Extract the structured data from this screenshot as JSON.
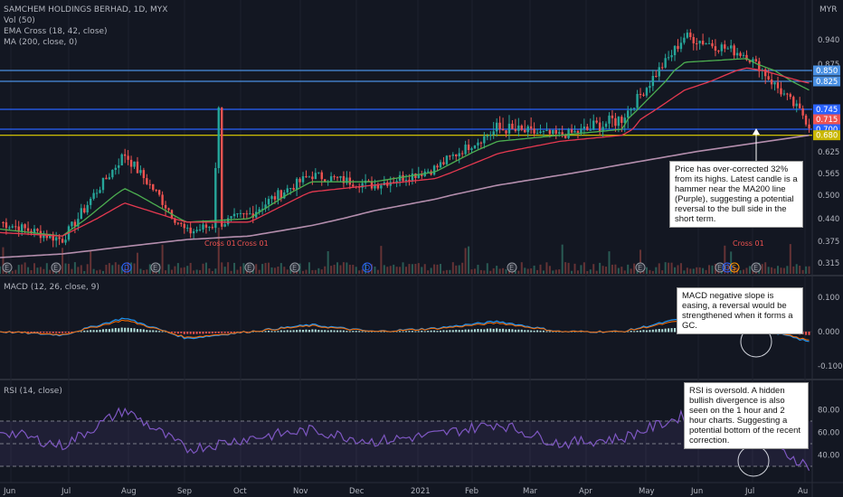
{
  "header": {
    "symbol_line": "SAMCHEM HOLDINGS BERHAD, 1D, MYX",
    "indicators": [
      "Vol (50)",
      "EMA Cross (18, 42, close)",
      "MA (200, close, 0)"
    ],
    "currency": "MYR"
  },
  "price_axis": {
    "ticks": [
      "0.940",
      "0.875",
      "0.850",
      "0.825",
      "0.745",
      "0.715",
      "0.700",
      "0.625",
      "0.565",
      "0.500",
      "0.440",
      "0.375",
      "0.315"
    ]
  },
  "price_tags": [
    {
      "text": "0.850",
      "color": "#4a90e2"
    },
    {
      "text": "0.825",
      "color": "#4a90e2"
    },
    {
      "text": "0.745",
      "color": "#2962ff"
    },
    {
      "text": "0.715",
      "color": "#ef5350"
    },
    {
      "text": "0.700",
      "color": "#2962ff"
    },
    {
      "text": "0.680",
      "color": "#c9b700"
    }
  ],
  "horizontal_levels": [
    {
      "value": 0.85,
      "color": "#4a90e2"
    },
    {
      "value": 0.825,
      "color": "#4a90e2"
    },
    {
      "value": 0.745,
      "color": "#2962ff"
    },
    {
      "value": 0.7,
      "color": "#2962ff"
    },
    {
      "value": 0.68,
      "color": "#e5d300"
    }
  ],
  "time_axis": [
    "Jun",
    "Jul",
    "Aug",
    "Sep",
    "Oct",
    "Nov",
    "Dec",
    "2021",
    "Feb",
    "Mar",
    "Apr",
    "May",
    "Jun",
    "Jul",
    "Au"
  ],
  "chart_markers": [
    "Cross 01",
    "Cross 01",
    "Cross 01"
  ],
  "event_badges": [
    "E",
    "E",
    "D",
    "E",
    "E",
    "E",
    "D",
    "E",
    "E",
    "E",
    "D",
    "S",
    "E"
  ],
  "macd": {
    "title": "MACD (12, 26, close, 9)",
    "ticks": [
      "0.100",
      "0.000",
      "-0.100"
    ]
  },
  "rsi": {
    "title": "RSI (14, close)",
    "ticks": [
      "80.00",
      "60.00",
      "40.00"
    ]
  },
  "annotations": {
    "price": "Price has over-corrected 32% from its highs. Latest candle is a hammer near the MA200 line (Purple), suggesting a potential reversal to the bull side in the short term.",
    "macd": "MACD negative slope is easing, a reversal would be strengthened when it forms a GC.",
    "rsi": "RSI is oversold. A hidden bullish divergence is also seen on the 1 hour and 2 hour charts. Suggesting a potential bottom of the recent correction."
  },
  "chart_data": {
    "type": "line",
    "title": "SAMCHEM HOLDINGS BERHAD, 1D, MYX",
    "x": [
      "Jun",
      "Jul",
      "Aug",
      "Sep",
      "Oct",
      "Nov",
      "Dec",
      "2021",
      "Feb",
      "Mar",
      "Apr",
      "May",
      "Jun",
      "Jul"
    ],
    "series": [
      {
        "name": "Close",
        "values": [
          0.43,
          0.38,
          0.62,
          0.4,
          0.45,
          0.56,
          0.53,
          0.58,
          0.7,
          0.68,
          0.72,
          0.95,
          0.9,
          0.71
        ]
      },
      {
        "name": "EMA 18",
        "values": [
          0.41,
          0.39,
          0.52,
          0.43,
          0.44,
          0.54,
          0.54,
          0.57,
          0.66,
          0.68,
          0.7,
          0.88,
          0.89,
          0.8
        ]
      },
      {
        "name": "EMA 42",
        "values": [
          0.4,
          0.39,
          0.48,
          0.43,
          0.43,
          0.51,
          0.53,
          0.55,
          0.62,
          0.66,
          0.68,
          0.8,
          0.86,
          0.82
        ]
      },
      {
        "name": "MA 200",
        "values": [
          0.33,
          0.34,
          0.36,
          0.38,
          0.39,
          0.42,
          0.46,
          0.49,
          0.53,
          0.56,
          0.59,
          0.62,
          0.65,
          0.68
        ]
      },
      {
        "name": "MACD",
        "values": [
          0.0,
          -0.01,
          0.04,
          -0.02,
          0.0,
          0.02,
          0.0,
          0.01,
          0.03,
          0.0,
          0.0,
          0.04,
          0.02,
          -0.03
        ]
      },
      {
        "name": "RSI",
        "values": [
          62,
          48,
          80,
          45,
          55,
          62,
          52,
          58,
          68,
          50,
          55,
          75,
          60,
          30
        ]
      }
    ],
    "ylim": [
      0.3,
      1.02
    ],
    "levels": [
      0.85,
      0.825,
      0.745,
      0.7,
      0.68
    ]
  }
}
